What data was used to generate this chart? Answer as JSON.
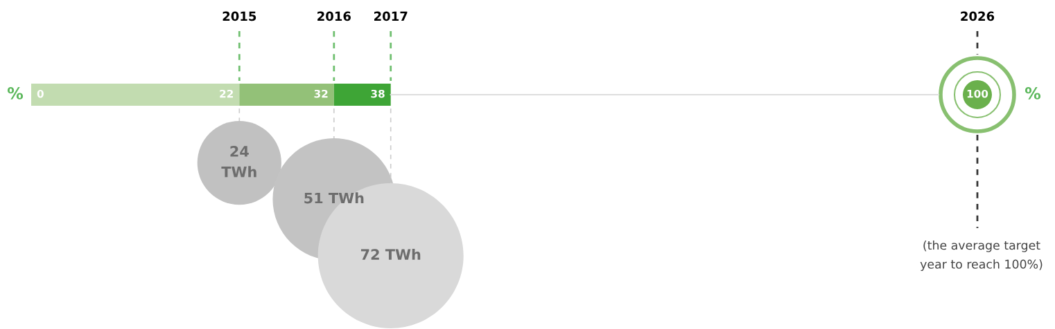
{
  "chart_data": {
    "type": "other",
    "categories": [
      "2015",
      "2016",
      "2017",
      "2026"
    ],
    "series": [
      {
        "type": "bar",
        "values": [
          22,
          32,
          38,
          100
        ],
        "colors": [
          "#c2dcb0",
          "#93c178",
          "#3ea536",
          "#6ab04c"
        ],
        "value_labels": [
          "22",
          "32",
          "38",
          "100"
        ]
      },
      {
        "type": "bubble",
        "values": [
          24,
          51,
          72,
          null
        ],
        "colors": [
          "#c1c1c1",
          "#c3c3c3",
          "#d9d9d9",
          null
        ],
        "value_labels": [
          "24\nTWh",
          "51 TWh",
          "72 TWh",
          null
        ]
      }
    ],
    "annotations": [
      "%",
      "0",
      "%",
      "(the average target\nyear to reach 100%)"
    ]
  }
}
